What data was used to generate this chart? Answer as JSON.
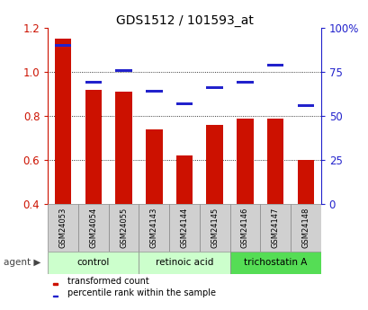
{
  "title": "GDS1512 / 101593_at",
  "samples": [
    "GSM24053",
    "GSM24054",
    "GSM24055",
    "GSM24143",
    "GSM24144",
    "GSM24145",
    "GSM24146",
    "GSM24147",
    "GSM24148"
  ],
  "transformed_count": [
    1.15,
    0.92,
    0.91,
    0.74,
    0.62,
    0.76,
    0.79,
    0.79,
    0.6
  ],
  "percentile_rank": [
    0.9,
    0.69,
    0.76,
    0.64,
    0.57,
    0.66,
    0.69,
    0.79,
    0.56
  ],
  "bar_bottom": 0.4,
  "ylim": [
    0.4,
    1.2
  ],
  "right_ylim": [
    0,
    100
  ],
  "right_yticks": [
    0,
    25,
    50,
    75,
    100
  ],
  "right_yticklabels": [
    "0",
    "25",
    "50",
    "75",
    "100%"
  ],
  "left_yticks": [
    0.4,
    0.6,
    0.8,
    1.0,
    1.2
  ],
  "bar_color": "#cc1100",
  "percentile_color": "#2222cc",
  "legend_items": [
    {
      "label": "transformed count",
      "color": "#cc1100"
    },
    {
      "label": "percentile rank within the sample",
      "color": "#2222cc"
    }
  ],
  "bar_width": 0.55,
  "bg_color": "#ffffff",
  "left_tick_color": "#cc1100",
  "right_tick_color": "#2222cc",
  "group_defs": [
    {
      "label": "control",
      "start": 0,
      "end": 3,
      "color": "#ccffcc"
    },
    {
      "label": "retinoic acid",
      "start": 3,
      "end": 6,
      "color": "#ccffcc"
    },
    {
      "label": "trichostatin A",
      "start": 6,
      "end": 9,
      "color": "#55dd55"
    }
  ]
}
